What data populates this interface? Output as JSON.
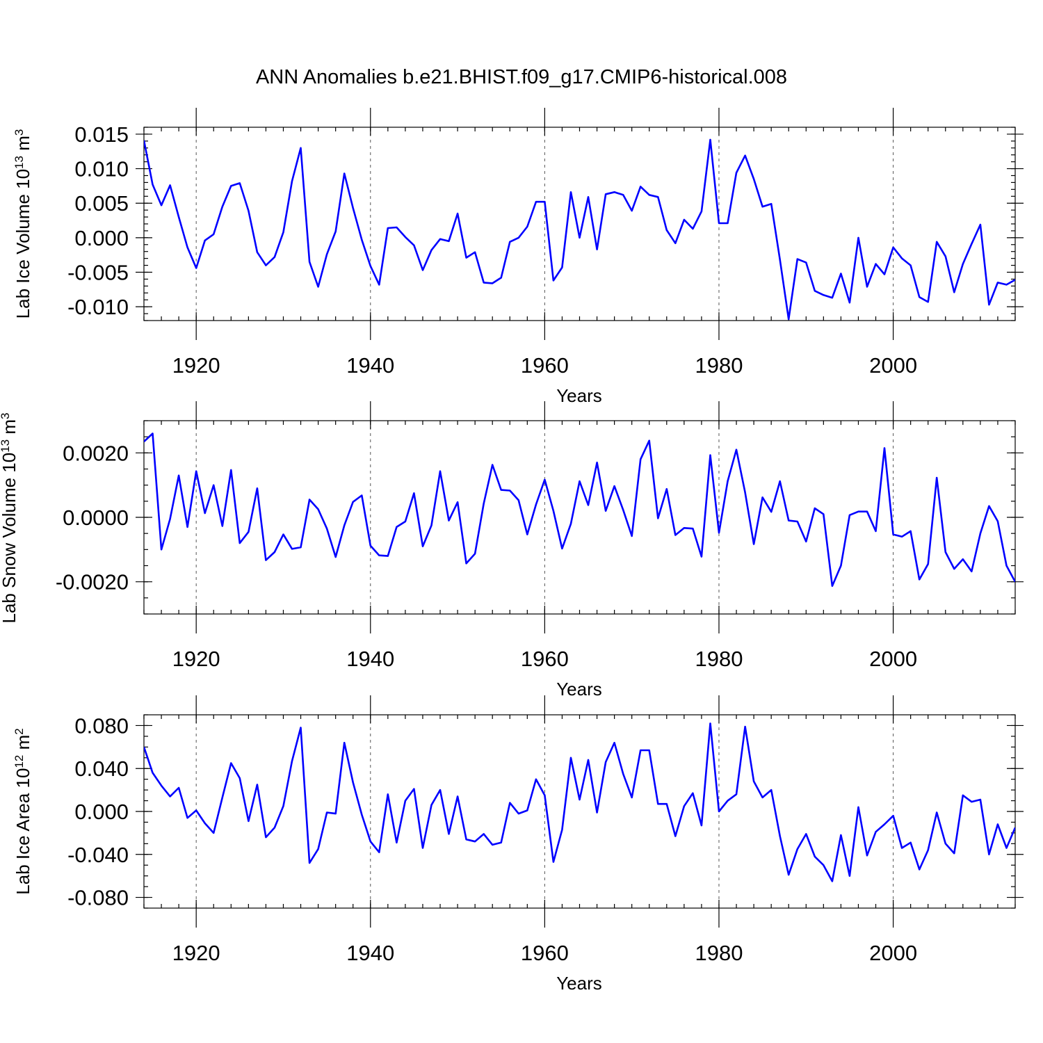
{
  "title": "ANN Anomalies b.e21.BHIST.f09_g17.CMIP6-historical.008",
  "colors": {
    "line": "#0000ff",
    "axis": "#000000",
    "grid": "#555555"
  },
  "chart_data": [
    {
      "type": "line",
      "panel": "ice-volume",
      "ylabel_main": "Lab Ice Volume 10",
      "ylabel_exp": "13",
      "ylabel_unit": " m",
      "ylabel_unit_exp": "3",
      "xlabel": "Years",
      "xlim": [
        1914,
        2014
      ],
      "ylim": [
        -0.012,
        0.016
      ],
      "yticks": [
        -0.01,
        -0.005,
        0.0,
        0.005,
        0.01,
        0.015
      ],
      "ytick_labels": [
        "-0.010",
        "-0.005",
        "0.000",
        "0.005",
        "0.010",
        "0.015"
      ],
      "yminor_step": 0.001,
      "xticks": [
        1920,
        1940,
        1960,
        1980,
        2000
      ],
      "xtick_labels": [
        "1920",
        "1940",
        "1960",
        "1980",
        "2000"
      ],
      "xminor_step": 2,
      "grid_x": [
        1920,
        1940,
        1960,
        1980,
        2000
      ],
      "x": [
        1914,
        1915,
        1916,
        1917,
        1918,
        1919,
        1920,
        1921,
        1922,
        1923,
        1924,
        1925,
        1926,
        1927,
        1928,
        1929,
        1930,
        1931,
        1932,
        1933,
        1934,
        1935,
        1936,
        1937,
        1938,
        1939,
        1940,
        1941,
        1942,
        1943,
        1944,
        1945,
        1946,
        1947,
        1948,
        1949,
        1950,
        1951,
        1952,
        1953,
        1954,
        1955,
        1956,
        1957,
        1958,
        1959,
        1960,
        1961,
        1962,
        1963,
        1964,
        1965,
        1966,
        1967,
        1968,
        1969,
        1970,
        1971,
        1972,
        1973,
        1974,
        1975,
        1976,
        1977,
        1978,
        1979,
        1980,
        1981,
        1982,
        1983,
        1984,
        1985,
        1986,
        1987,
        1988,
        1989,
        1990,
        1991,
        1992,
        1993,
        1994,
        1995,
        1996,
        1997,
        1998,
        1999,
        2000,
        2001,
        2002,
        2003,
        2004,
        2005,
        2006,
        2007,
        2008,
        2009,
        2010,
        2011,
        2012,
        2013,
        2014
      ],
      "series": [
        {
          "name": "Lab Ice Volume",
          "values": [
            0.0141,
            0.0077,
            0.0047,
            0.0076,
            0.003,
            -0.0014,
            -0.0044,
            -0.0004,
            0.0005,
            0.0045,
            0.0075,
            0.0079,
            0.0039,
            -0.0021,
            -0.004,
            -0.0028,
            0.0008,
            0.0082,
            0.013,
            -0.0035,
            -0.0071,
            -0.0024,
            0.0009,
            0.0093,
            0.0043,
            -0.0003,
            -0.0041,
            -0.0068,
            0.0014,
            0.0015,
            0.0001,
            -0.0011,
            -0.0047,
            -0.0018,
            -0.0002,
            -0.0005,
            0.0035,
            -0.0029,
            -0.0021,
            -0.0065,
            -0.0066,
            -0.0058,
            -0.0006,
            0.0,
            0.0016,
            0.0052,
            0.0052,
            -0.0062,
            -0.0043,
            0.0066,
            0.0,
            0.0059,
            -0.0017,
            0.0063,
            0.0066,
            0.0062,
            0.0039,
            0.0074,
            0.0062,
            0.0059,
            0.0011,
            -0.0008,
            0.0026,
            0.0013,
            0.0038,
            0.0142,
            0.0021,
            0.0021,
            0.0094,
            0.0119,
            0.0085,
            0.0045,
            0.0049,
            -0.0032,
            -0.0118,
            -0.0031,
            -0.0036,
            -0.0077,
            -0.0083,
            -0.0087,
            -0.0052,
            -0.0094,
            0.0,
            -0.0071,
            -0.0038,
            -0.0053,
            -0.0014,
            -0.003,
            -0.004,
            -0.0086,
            -0.0093,
            -0.0006,
            -0.0027,
            -0.0079,
            -0.0038,
            -0.0009,
            0.0019,
            -0.0097,
            -0.0065,
            -0.0068,
            -0.0061
          ]
        }
      ]
    },
    {
      "type": "line",
      "panel": "snow-volume",
      "ylabel_main": "Lab Snow Volume 10",
      "ylabel_exp": "13",
      "ylabel_unit": " m",
      "ylabel_unit_exp": "3",
      "xlabel": "Years",
      "xlim": [
        1914,
        2014
      ],
      "ylim": [
        -0.003,
        0.003
      ],
      "yticks": [
        -0.002,
        0.0,
        0.002
      ],
      "ytick_labels": [
        "-0.0020",
        "0.0000",
        "0.0020"
      ],
      "yminor_step": 0.0005,
      "xticks": [
        1920,
        1940,
        1960,
        1980,
        2000
      ],
      "xtick_labels": [
        "1920",
        "1940",
        "1960",
        "1980",
        "2000"
      ],
      "xminor_step": 2,
      "grid_x": [
        1920,
        1940,
        1960,
        1980,
        2000
      ],
      "x": [
        1914,
        1915,
        1916,
        1917,
        1918,
        1919,
        1920,
        1921,
        1922,
        1923,
        1924,
        1925,
        1926,
        1927,
        1928,
        1929,
        1930,
        1931,
        1932,
        1933,
        1934,
        1935,
        1936,
        1937,
        1938,
        1939,
        1940,
        1941,
        1942,
        1943,
        1944,
        1945,
        1946,
        1947,
        1948,
        1949,
        1950,
        1951,
        1952,
        1953,
        1954,
        1955,
        1956,
        1957,
        1958,
        1959,
        1960,
        1961,
        1962,
        1963,
        1964,
        1965,
        1966,
        1967,
        1968,
        1969,
        1970,
        1971,
        1972,
        1973,
        1974,
        1975,
        1976,
        1977,
        1978,
        1979,
        1980,
        1981,
        1982,
        1983,
        1984,
        1985,
        1986,
        1987,
        1988,
        1989,
        1990,
        1991,
        1992,
        1993,
        1994,
        1995,
        1996,
        1997,
        1998,
        1999,
        2000,
        2001,
        2002,
        2003,
        2004,
        2005,
        2006,
        2007,
        2008,
        2009,
        2010,
        2011,
        2012,
        2013,
        2014
      ],
      "series": [
        {
          "name": "Lab Snow Volume",
          "values": [
            0.00235,
            0.0026,
            -0.001,
            -5e-05,
            0.0013,
            -0.0003,
            0.00143,
            0.00013,
            0.001,
            -0.00027,
            0.00147,
            -0.0008,
            -0.00045,
            0.0009,
            -0.00133,
            -0.00108,
            -0.00053,
            -0.00098,
            -0.00093,
            0.00055,
            0.00025,
            -0.00035,
            -0.00123,
            -0.00025,
            0.00048,
            0.00068,
            -0.00088,
            -0.00118,
            -0.0012,
            -0.0003,
            -0.00013,
            0.00075,
            -0.0009,
            -0.00025,
            0.00143,
            -0.0001,
            0.00047,
            -0.00143,
            -0.00113,
            0.00043,
            0.00163,
            0.00085,
            0.00083,
            0.00053,
            -0.00053,
            0.0004,
            0.00117,
            0.0002,
            -0.00097,
            -0.0002,
            0.00112,
            0.00038,
            0.0017,
            0.0002,
            0.00097,
            0.00023,
            -0.00058,
            0.0018,
            0.00238,
            -3e-05,
            0.00088,
            -0.00055,
            -0.00033,
            -0.00035,
            -0.00122,
            0.00193,
            -0.00048,
            0.00112,
            0.0021,
            0.00077,
            -0.00083,
            0.00062,
            0.00017,
            0.00112,
            -0.0001,
            -0.00013,
            -0.00075,
            0.00028,
            0.0001,
            -0.00213,
            -0.0015,
            7e-05,
            0.00018,
            0.00018,
            -0.00043,
            0.00215,
            -0.00053,
            -0.0006,
            -0.00043,
            -0.00193,
            -0.00145,
            0.00123,
            -0.00108,
            -0.0016,
            -0.0013,
            -0.00168,
            -0.0005,
            0.00035,
            -0.00012,
            -0.0015,
            -0.002
          ]
        }
      ]
    },
    {
      "type": "line",
      "panel": "ice-area",
      "ylabel_main": "Lab Ice Area 10",
      "ylabel_exp": "12",
      "ylabel_unit": " m",
      "ylabel_unit_exp": "2",
      "xlabel": "Years",
      "xlim": [
        1914,
        2014
      ],
      "ylim": [
        -0.09,
        0.09
      ],
      "yticks": [
        -0.08,
        -0.04,
        0.0,
        0.04,
        0.08
      ],
      "ytick_labels": [
        "-0.080",
        "-0.040",
        "0.000",
        "0.040",
        "0.080"
      ],
      "yminor_step": 0.01,
      "xticks": [
        1920,
        1940,
        1960,
        1980,
        2000
      ],
      "xtick_labels": [
        "1920",
        "1940",
        "1960",
        "1980",
        "2000"
      ],
      "xminor_step": 2,
      "grid_x": [
        1920,
        1940,
        1960,
        1980,
        2000
      ],
      "x": [
        1914,
        1915,
        1916,
        1917,
        1918,
        1919,
        1920,
        1921,
        1922,
        1923,
        1924,
        1925,
        1926,
        1927,
        1928,
        1929,
        1930,
        1931,
        1932,
        1933,
        1934,
        1935,
        1936,
        1937,
        1938,
        1939,
        1940,
        1941,
        1942,
        1943,
        1944,
        1945,
        1946,
        1947,
        1948,
        1949,
        1950,
        1951,
        1952,
        1953,
        1954,
        1955,
        1956,
        1957,
        1958,
        1959,
        1960,
        1961,
        1962,
        1963,
        1964,
        1965,
        1966,
        1967,
        1968,
        1969,
        1970,
        1971,
        1972,
        1973,
        1974,
        1975,
        1976,
        1977,
        1978,
        1979,
        1980,
        1981,
        1982,
        1983,
        1984,
        1985,
        1986,
        1987,
        1988,
        1989,
        1990,
        1991,
        1992,
        1993,
        1994,
        1995,
        1996,
        1997,
        1998,
        1999,
        2000,
        2001,
        2002,
        2003,
        2004,
        2005,
        2006,
        2007,
        2008,
        2009,
        2010,
        2011,
        2012,
        2013,
        2014
      ],
      "series": [
        {
          "name": "Lab Ice Area",
          "values": [
            0.06,
            0.036,
            0.024,
            0.014,
            0.022,
            -0.006,
            0.001,
            -0.011,
            -0.02,
            0.013,
            0.045,
            0.031,
            -0.009,
            0.025,
            -0.024,
            -0.015,
            0.005,
            0.047,
            0.078,
            -0.048,
            -0.035,
            -0.001,
            -0.002,
            0.064,
            0.027,
            -0.003,
            -0.028,
            -0.038,
            0.016,
            -0.029,
            0.01,
            0.021,
            -0.034,
            0.006,
            0.02,
            -0.021,
            0.014,
            -0.026,
            -0.028,
            -0.021,
            -0.031,
            -0.029,
            0.008,
            -0.002,
            0.001,
            0.03,
            0.015,
            -0.047,
            -0.017,
            0.05,
            0.011,
            0.048,
            -0.001,
            0.046,
            0.064,
            0.035,
            0.013,
            0.057,
            0.057,
            0.007,
            0.007,
            -0.023,
            0.005,
            0.017,
            -0.013,
            0.082,
            0.0,
            0.01,
            0.016,
            0.079,
            0.028,
            0.013,
            0.02,
            -0.023,
            -0.059,
            -0.035,
            -0.021,
            -0.042,
            -0.05,
            -0.065,
            -0.022,
            -0.06,
            0.004,
            -0.041,
            -0.019,
            -0.012,
            -0.004,
            -0.034,
            -0.029,
            -0.054,
            -0.036,
            -0.001,
            -0.03,
            -0.039,
            0.015,
            0.009,
            0.011,
            -0.04,
            -0.012,
            -0.034,
            -0.015
          ]
        }
      ]
    }
  ]
}
